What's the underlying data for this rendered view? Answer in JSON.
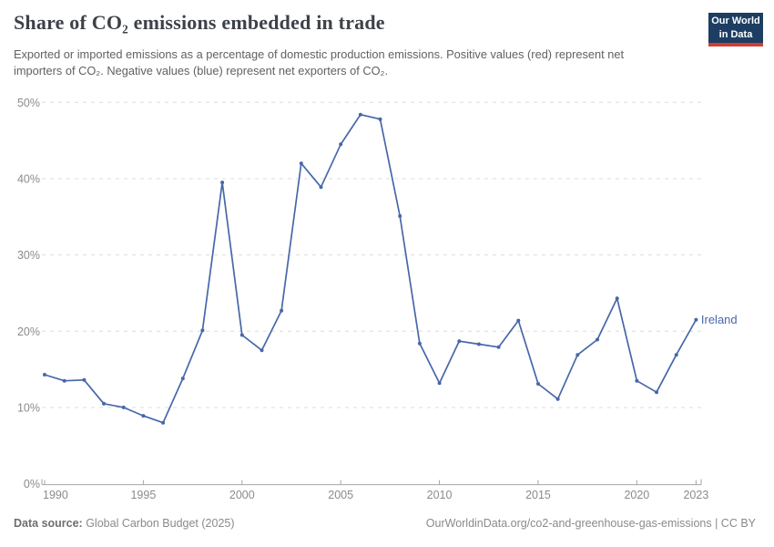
{
  "header": {
    "title": "Share of CO₂ emissions embedded in trade",
    "subtitle": "Exported or imported emissions as a percentage of domestic production emissions. Positive values (red) represent net importers of CO₂. Negative values (blue) represent net exporters of CO₂.",
    "logo": {
      "line1": "Our World",
      "line2": "in Data"
    }
  },
  "chart_data": {
    "type": "line",
    "title": "Share of CO₂ emissions embedded in trade",
    "x": [
      1990,
      1991,
      1992,
      1993,
      1994,
      1995,
      1996,
      1997,
      1998,
      1999,
      2000,
      2001,
      2002,
      2003,
      2004,
      2005,
      2006,
      2007,
      2008,
      2009,
      2010,
      2011,
      2012,
      2013,
      2014,
      2015,
      2016,
      2017,
      2018,
      2019,
      2020,
      2021,
      2022,
      2023
    ],
    "series": [
      {
        "name": "Ireland",
        "values": [
          14.3,
          13.5,
          13.6,
          10.5,
          10.0,
          8.9,
          8.0,
          13.8,
          20.1,
          39.5,
          19.5,
          17.5,
          22.7,
          42.0,
          38.9,
          44.5,
          48.4,
          47.8,
          35.1,
          18.4,
          13.2,
          18.7,
          18.3,
          17.9,
          21.4,
          13.1,
          11.1,
          16.9,
          18.9,
          24.3,
          13.5,
          12.0,
          16.9,
          21.5
        ],
        "color": "#4767a8"
      }
    ],
    "unit": "%",
    "ylim": [
      0,
      50
    ],
    "yticks": [
      0,
      10,
      20,
      30,
      40,
      50
    ],
    "xticks": [
      1990,
      1995,
      2000,
      2005,
      2010,
      2015,
      2020,
      2023
    ],
    "grid": "horizontal-dashed",
    "legend_position": "end-of-line-label",
    "end_label": "Ireland"
  },
  "colors": {
    "line": "#4767a8",
    "grid": "#dcdcdc",
    "axis": "#a6a6a6",
    "tick_label": "#8b8b8b",
    "logo_bg": "#1d3d63",
    "logo_bar": "#d23d33"
  },
  "footer": {
    "datasource_label": "Data source:",
    "datasource_value": " Global Carbon Budget (2025)",
    "right": "OurWorldinData.org/co2-and-greenhouse-gas-emissions | CC BY"
  }
}
